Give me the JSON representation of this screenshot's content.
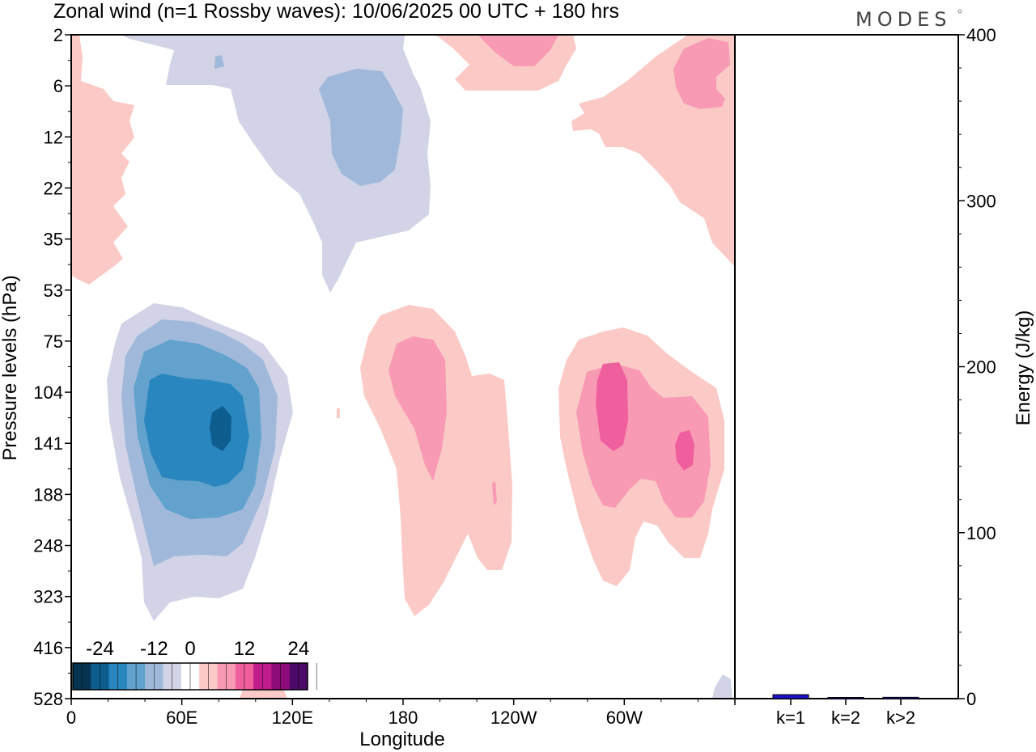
{
  "chart_data": [
    {
      "type": "heatmap",
      "title": "Zonal wind (n=1 Rossby waves):  10/06/2025  00 UTC  + 180 hrs",
      "xlabel": "Longitude",
      "ylabel": "Pressure levels (hPa)",
      "x_ticks": [
        "0",
        "60E",
        "120E",
        "180",
        "120W",
        "60W"
      ],
      "y_ticks": [
        "2",
        "6",
        "12",
        "22",
        "35",
        "53",
        "75",
        "104",
        "141",
        "188",
        "248",
        "323",
        "416",
        "528"
      ],
      "colorbar": {
        "labels": [
          "-24",
          "-12",
          "0",
          "12",
          "24"
        ],
        "levels": [
          -28,
          -24,
          -20,
          -16,
          -12,
          -8,
          -4,
          4,
          8,
          12,
          16,
          20,
          24,
          28
        ],
        "colors": [
          "#073452",
          "#0d5d8f",
          "#2a86bf",
          "#62a2cd",
          "#a0b9da",
          "#d2d3e6",
          "#ffffff",
          "#fbcac6",
          "#f89ab3",
          "#ef5f9e",
          "#c01c8b",
          "#8e0c79",
          "#4d0a69"
        ]
      },
      "features": [
        {
          "sign": "negative",
          "center_lon": 80,
          "center_p": 141,
          "peak": -24
        },
        {
          "sign": "positive",
          "center_lon": 185,
          "center_p": 104,
          "peak": 12
        },
        {
          "sign": "positive",
          "center_lon": 285,
          "center_p": 125,
          "peak": 16
        },
        {
          "sign": "positive",
          "center_lon": 318,
          "center_p": 141,
          "peak": 16
        },
        {
          "sign": "negative",
          "center_lon": 150,
          "center_p": 12,
          "peak": -8
        }
      ]
    },
    {
      "type": "bar",
      "categories": [
        "k=1",
        "k=2",
        "k>2"
      ],
      "values": [
        2.4,
        0.3,
        0.8
      ],
      "ylabel": "Energy (J/kg)",
      "ylim": [
        0,
        400
      ],
      "y_ticks": [
        "0",
        "100",
        "200",
        "300",
        "400"
      ],
      "bar_colors": [
        "#1a12c8",
        "#1a12c8",
        "#1a12c8"
      ]
    }
  ],
  "logo": "MODES"
}
